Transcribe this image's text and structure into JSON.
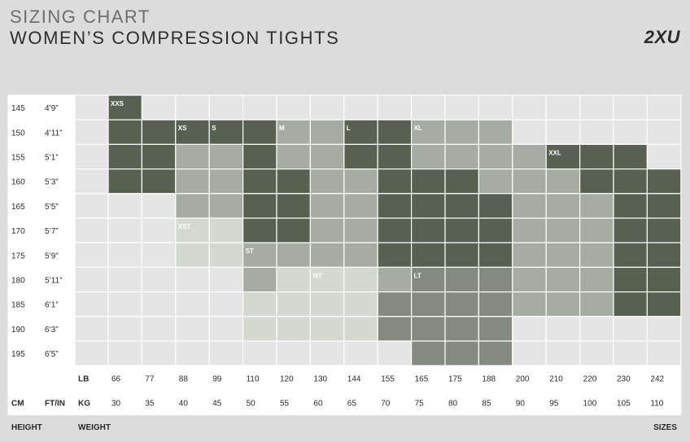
{
  "header": {
    "title_line1": "SIZING CHART",
    "title_line2": "WOMEN’S COMPRESSION TIGHTS",
    "brand": "2XU"
  },
  "footer": {
    "height": "HEIGHT",
    "weight": "WEIGHT",
    "sizes": "SIZES"
  },
  "colors": {
    "dark": "#58604f",
    "medium": "#a6aca3",
    "light": "#d3d9d1",
    "mid_dark": "#858a81",
    "empty": "#e5e5e6",
    "border": "#ffffff",
    "background": "#dcdcdd"
  },
  "chart_data": {
    "type": "heatmap",
    "axis_labels": {
      "cm": "CM",
      "ftin": "FT/IN",
      "lb": "LB",
      "kg": "KG"
    },
    "rows_cm": [
      "145",
      "150",
      "155",
      "160",
      "165",
      "170",
      "175",
      "180",
      "185",
      "190",
      "195"
    ],
    "rows_ftin": [
      "4’9”",
      "4’11”",
      "5’1”",
      "5’3”",
      "5’5”",
      "5’7”",
      "5’9”",
      "5’11”",
      "6’1”",
      "6’3”",
      "6’5”"
    ],
    "cols_lb": [
      "66",
      "77",
      "88",
      "99",
      "110",
      "120",
      "130",
      "144",
      "155",
      "165",
      "175",
      "188",
      "200",
      "210",
      "220",
      "230",
      "242"
    ],
    "cols_kg": [
      "30",
      "35",
      "40",
      "45",
      "50",
      "55",
      "60",
      "65",
      "70",
      "75",
      "80",
      "85",
      "90",
      "95",
      "100",
      "105",
      "110"
    ],
    "cell_codes": [
      "D................",
      "DDDDDMMDDMMM.....",
      "DDMMDMMDDMMMMDDD.",
      "DDMMDDMMDDDMMMDDD",
      "..MMDDMMDDDDMMMDD",
      "..LLDDMMDDDDMMMDD",
      "..LLMMMMDDDDMMMDD",
      "....MLLLMKKKMMMDD",
      "....LLLLKKKKMMMDD",
      "....LLLLKKKK.....",
      ".........KKK....."
    ],
    "legend_note": "D=dark, M=medium, L=light, K=mid_dark, .=empty",
    "size_labels": [
      {
        "label": "XXS",
        "row": 0,
        "col": 0
      },
      {
        "label": "XS",
        "row": 1,
        "col": 2
      },
      {
        "label": "S",
        "row": 1,
        "col": 3
      },
      {
        "label": "M",
        "row": 1,
        "col": 5
      },
      {
        "label": "L",
        "row": 1,
        "col": 7
      },
      {
        "label": "XL",
        "row": 1,
        "col": 9
      },
      {
        "label": "XXL",
        "row": 2,
        "col": 13
      },
      {
        "label": "XST",
        "row": 5,
        "col": 2
      },
      {
        "label": "ST",
        "row": 6,
        "col": 4
      },
      {
        "label": "MT",
        "row": 7,
        "col": 6
      },
      {
        "label": "LT",
        "row": 7,
        "col": 9
      }
    ]
  }
}
